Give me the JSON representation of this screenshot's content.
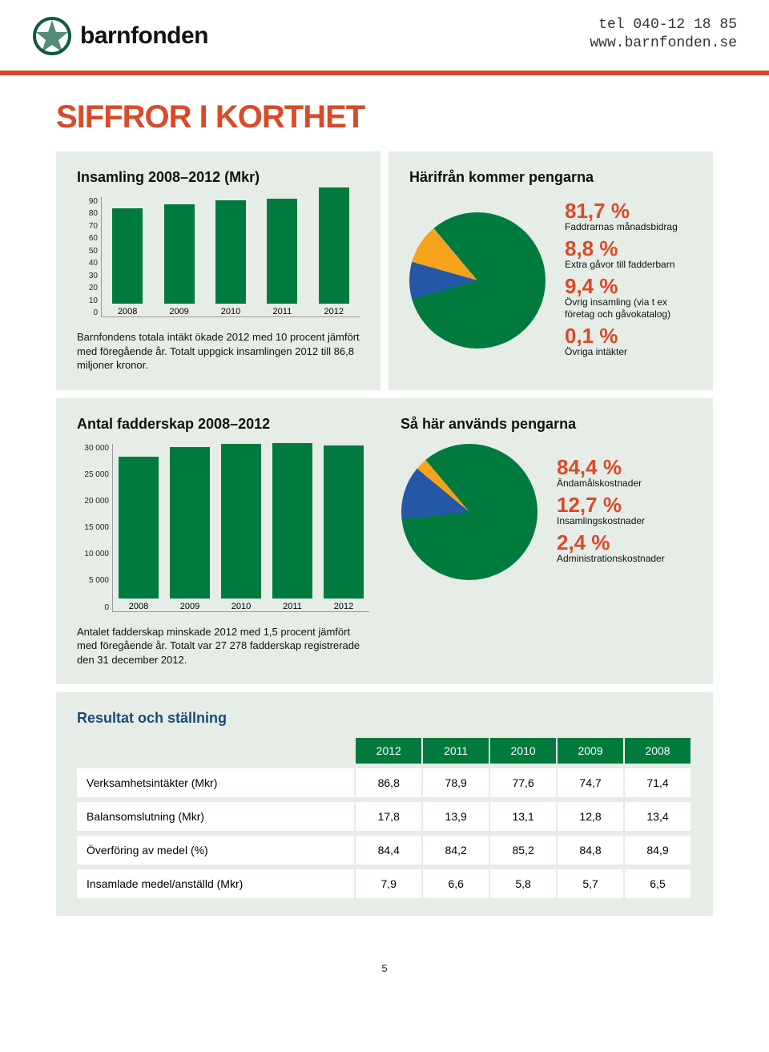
{
  "header": {
    "wordmark": "barnfonden",
    "tel": "tel 040-12 18 85",
    "url": "www.barnfonden.se"
  },
  "page_title": "SIFFROR I KORTHET",
  "chart1": {
    "title": "Insamling 2008–2012 (Mkr)",
    "type": "bar",
    "categories": [
      "2008",
      "2009",
      "2010",
      "2011",
      "2012"
    ],
    "values": [
      71.4,
      74.7,
      77.6,
      78.9,
      86.8
    ],
    "bar_color": "#007a3d",
    "ylim": [
      0,
      90
    ],
    "ytick_step": 10,
    "yticks": [
      "90",
      "80",
      "70",
      "60",
      "50",
      "40",
      "30",
      "20",
      "10",
      "0"
    ],
    "caption": "Barnfondens totala intäkt ökade 2012 med 10 procent jämfört med föregående år. Totalt uppgick insamlingen 2012 till 86,8 miljoner kronor."
  },
  "pie1": {
    "title": "Härifrån kommer pengarna",
    "type": "pie",
    "slices": [
      {
        "pct": "81,7 %",
        "label": "Faddrarnas månadsbidrag",
        "value": 81.7,
        "color": "#007a3d"
      },
      {
        "pct": "8,8 %",
        "label": "Extra gåvor till fadderbarn",
        "value": 8.8,
        "color": "#2457a6"
      },
      {
        "pct": "9,4 %",
        "label": "Övrig insamling (via t ex företag och gåvokatalog)",
        "value": 9.4,
        "color": "#f6a21b"
      },
      {
        "pct": "0,1 %",
        "label": "Övriga intäkter",
        "value": 0.1,
        "color": "#cccccc"
      }
    ]
  },
  "chart2": {
    "title": "Antal fadderskap 2008–2012",
    "type": "bar",
    "categories": [
      "2008",
      "2009",
      "2010",
      "2011",
      "2012"
    ],
    "values": [
      25200,
      27000,
      27500,
      27700,
      27278
    ],
    "bar_color": "#007a3d",
    "ylim": [
      0,
      30000
    ],
    "ytick_step": 5000,
    "yticks": [
      "30 000",
      "25 000",
      "20 000",
      "15 000",
      "10 000",
      "5 000",
      "0"
    ],
    "caption": "Antalet fadderskap minskade 2012 med 1,5 procent jämfört med föregående år. Totalt var 27 278 fadderskap registrerade den 31 december 2012."
  },
  "pie2": {
    "title": "Så här används pengarna",
    "type": "pie",
    "slices": [
      {
        "pct": "84,4 %",
        "label": "Ändamålskostnader",
        "value": 84.4,
        "color": "#007a3d"
      },
      {
        "pct": "12,7 %",
        "label": "Insamlingskostnader",
        "value": 12.7,
        "color": "#2457a6"
      },
      {
        "pct": "2,4 %",
        "label": "Administrations­kostnader",
        "value": 2.4,
        "color": "#f6a21b"
      }
    ]
  },
  "result": {
    "title": "Resultat och ställning",
    "columns": [
      "",
      "2012",
      "2011",
      "2010",
      "2009",
      "2008"
    ],
    "rows": [
      [
        "Verksamhetsintäkter (Mkr)",
        "86,8",
        "78,9",
        "77,6",
        "74,7",
        "71,4"
      ],
      [
        "Balansomslutning (Mkr)",
        "17,8",
        "13,9",
        "13,1",
        "12,8",
        "13,4"
      ],
      [
        "Överföring av medel (%)",
        "84,4",
        "84,2",
        "85,2",
        "84,8",
        "84,9"
      ],
      [
        "Insamlade medel/anställd (Mkr)",
        "7,9",
        "6,6",
        "5,8",
        "5,7",
        "6,5"
      ]
    ],
    "header_bg": "#007a3d",
    "cell_bg": "#ffffff"
  },
  "page_number": "5",
  "colors": {
    "accent_red": "#d94b28",
    "green": "#007a3d",
    "panel_bg": "#e6ece6",
    "blue_title": "#194b7a"
  }
}
